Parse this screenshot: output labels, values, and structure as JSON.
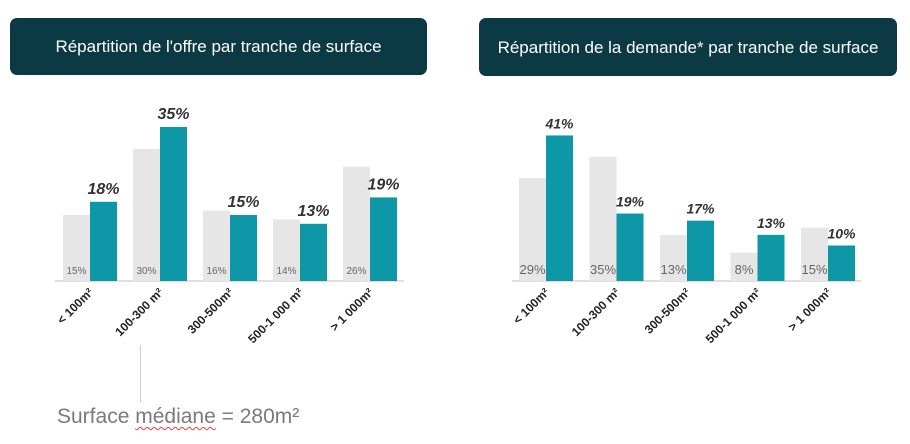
{
  "colors": {
    "title_bg": "#0b3a44",
    "prior_bar": "#e6e6e6",
    "current_bar": "#0e97a6",
    "value_label": "#333333",
    "prior_label": "#666666",
    "axis": "#bfbfbf"
  },
  "chart_data": [
    {
      "type": "bar",
      "title": "Répartition de l'offre par tranche de surface",
      "categories": [
        "< 100m²",
        "100-300 m²",
        "300-500m²",
        "500-1 000 m²",
        "> 1 000m²"
      ],
      "series": [
        {
          "values": [
            15,
            30,
            16,
            14,
            26
          ],
          "labels": [
            "15%",
            "30%",
            "16%",
            "14%",
            "26%"
          ]
        },
        {
          "values": [
            18,
            35,
            15,
            13,
            19
          ],
          "labels": [
            "18%",
            "35%",
            "15%",
            "13%",
            "19%"
          ]
        }
      ],
      "grid": false
    },
    {
      "type": "bar",
      "title": "Répartition de la demande* par tranche de surface",
      "categories": [
        "< 100m²",
        "100-300 m²",
        "300-500m²",
        "500-1 000 m²",
        "> 1 000m²"
      ],
      "series": [
        {
          "values": [
            29,
            35,
            13,
            8,
            15
          ],
          "labels": [
            "29%",
            "35%",
            "13%",
            "8%",
            "15%"
          ]
        },
        {
          "values": [
            41,
            19,
            17,
            13,
            10
          ],
          "labels": [
            "41%",
            "19%",
            "17%",
            "13%",
            "10%"
          ]
        }
      ],
      "grid": false
    }
  ],
  "note": {
    "prefix": "Surface ",
    "underlined": "médiane",
    "suffix": " = 280m²"
  }
}
